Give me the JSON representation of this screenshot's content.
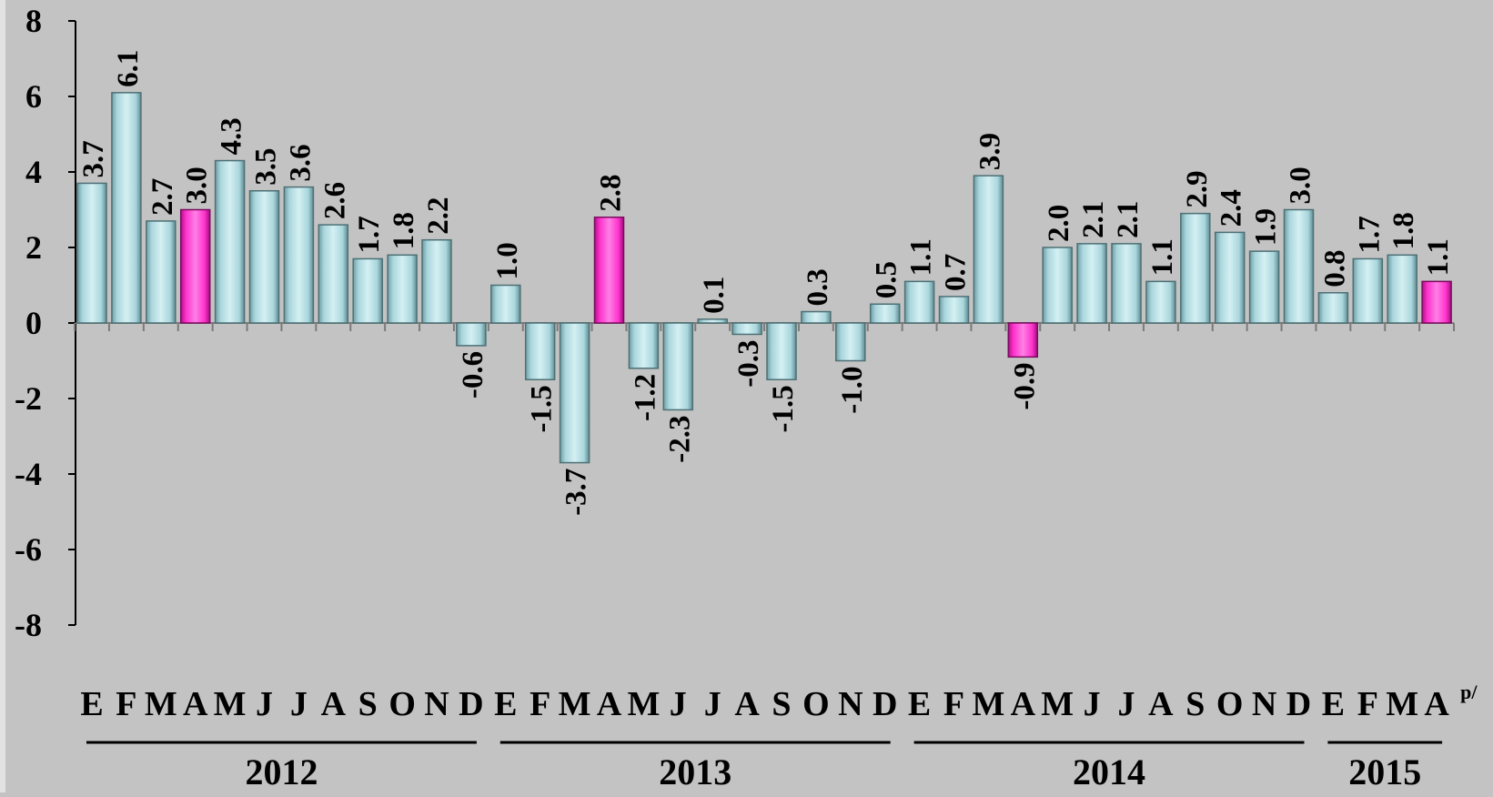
{
  "colors": {
    "background": "#c3c3c3",
    "bar_normal": "#a9d6dc",
    "bar_highlight": "#ff33cc",
    "text": "#000000"
  },
  "chart_data": {
    "type": "bar",
    "title": "",
    "xlabel": "",
    "ylabel": "",
    "ylim": [
      -8,
      8
    ],
    "yticks": [
      8,
      6,
      4,
      2,
      0,
      -2,
      -4,
      -6,
      -8
    ],
    "grid": false,
    "categories": [
      "E",
      "F",
      "M",
      "A",
      "M",
      "J",
      "J",
      "A",
      "S",
      "O",
      "N",
      "D",
      "E",
      "F",
      "M",
      "A",
      "M",
      "J",
      "J",
      "A",
      "S",
      "O",
      "N",
      "D",
      "E",
      "F",
      "M",
      "A",
      "M",
      "J",
      "J",
      "A",
      "S",
      "O",
      "N",
      "D",
      "E",
      "F",
      "M",
      "A"
    ],
    "values": [
      3.7,
      6.1,
      2.7,
      3.0,
      4.3,
      3.5,
      3.6,
      2.6,
      1.7,
      1.8,
      2.2,
      -0.6,
      1.0,
      -1.5,
      -3.7,
      2.8,
      -1.2,
      -2.3,
      0.1,
      -0.3,
      -1.5,
      0.3,
      -1.0,
      0.5,
      1.1,
      0.7,
      3.9,
      -0.9,
      2.0,
      2.1,
      2.1,
      1.1,
      2.9,
      2.4,
      1.9,
      3.0,
      0.8,
      1.7,
      1.8,
      1.1
    ],
    "value_labels": [
      "3.7",
      "6.1",
      "2.7",
      "3.0",
      "4.3",
      "3.5",
      "3.6",
      "2.6",
      "1.7",
      "1.8",
      "2.2",
      "-0.6",
      "1.0",
      "-1.5",
      "-3.7",
      "2.8",
      "-1.2",
      "-2.3",
      "0.1",
      "-0.3",
      "-1.5",
      "0.3",
      "-1.0",
      "0.5",
      "1.1",
      "0.7",
      "3.9",
      "-0.9",
      "2.0",
      "2.1",
      "2.1",
      "1.1",
      "2.9",
      "2.4",
      "1.9",
      "3.0",
      "0.8",
      "1.7",
      "1.8",
      "1.1"
    ],
    "highlighted_indices": [
      3,
      15,
      27,
      39
    ],
    "years": [
      {
        "label": "2012",
        "start": 0,
        "end": 11
      },
      {
        "label": "2013",
        "start": 12,
        "end": 23
      },
      {
        "label": "2014",
        "start": 24,
        "end": 35
      },
      {
        "label": "2015",
        "start": 36,
        "end": 39
      }
    ],
    "footnote": "p/"
  }
}
